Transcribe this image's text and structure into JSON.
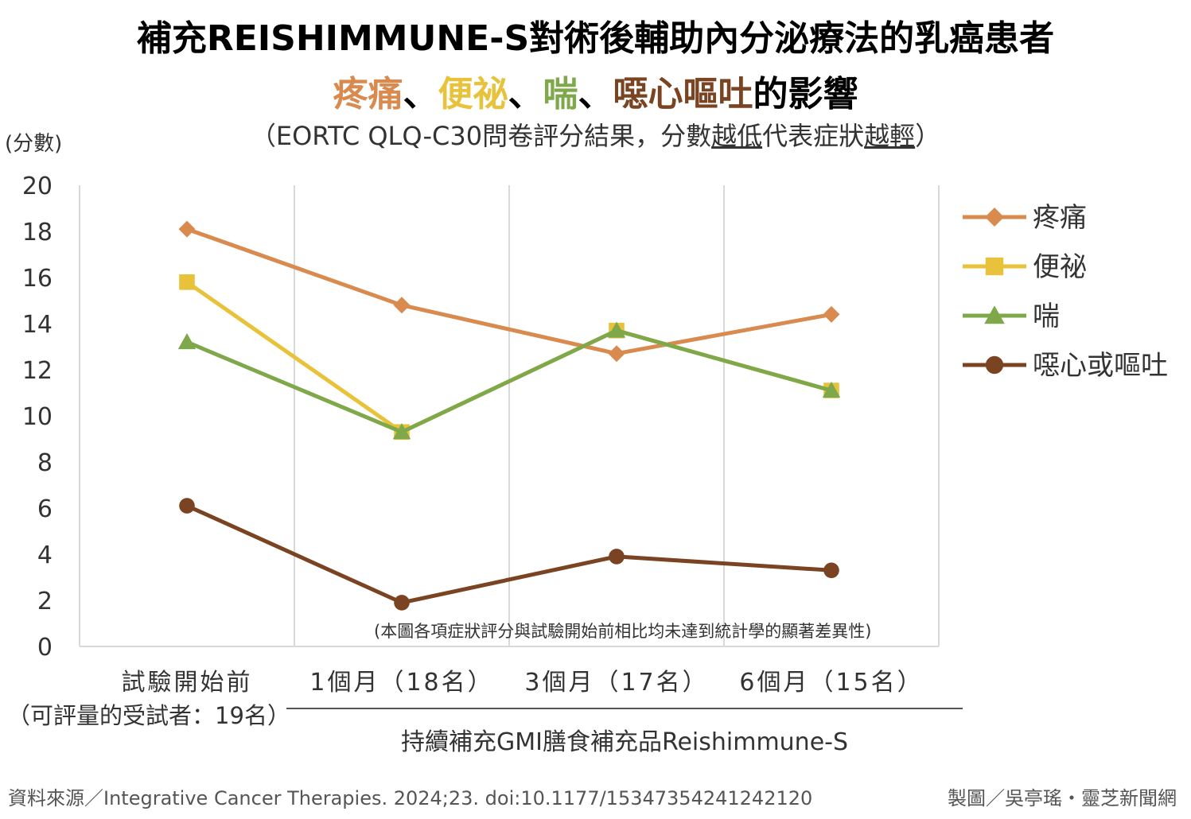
{
  "title": "補充REISHIMMUNE-S對術後輔助內分泌療法的乳癌患者",
  "title2": {
    "pain": "疼痛",
    "sep1": "、",
    "constipation": "便祕",
    "sep2": "、",
    "dyspnea": "喘",
    "sep3": "、",
    "nausea": "噁心嘔吐",
    "suffix": "的影響"
  },
  "subtitle": {
    "pre": "（EORTC QLQ-C30問卷評分結果，分數",
    "u1": "越低",
    "mid": "代表症狀",
    "u2": "越輕",
    "post": "）"
  },
  "y_unit": "(分數)",
  "note": "(本圖各項症狀評分與試驗開始前相比均未達到統計學的顯著差異性)",
  "group_label": "持續補充GMI膳食補充品Reishimmune-S",
  "source": "資料來源／Integrative Cancer Therapies. 2024;23. doi:10.1177/15347354241242120",
  "credit": "製圖／吳亭瑤・靈芝新聞網",
  "chart_data": {
    "type": "line",
    "categories": [
      "試驗開始前",
      "1個月（18名）",
      "3個月（17名）",
      "6個月（15名）"
    ],
    "category_sublabels": [
      "（可評量的受試者：19名）",
      "",
      "",
      ""
    ],
    "ylim": [
      0,
      20
    ],
    "yticks": [
      0,
      2,
      4,
      6,
      8,
      10,
      12,
      14,
      16,
      18,
      20
    ],
    "grid": "vertical",
    "legend_position": "right",
    "series": [
      {
        "name": "疼痛",
        "color": "#D98A4E",
        "marker": "diamond",
        "values": [
          18.1,
          14.8,
          12.7,
          14.4
        ]
      },
      {
        "name": "便祕",
        "color": "#E8C23A",
        "marker": "square",
        "values": [
          15.8,
          9.3,
          13.7,
          11.1
        ]
      },
      {
        "name": "喘",
        "color": "#7FA84B",
        "marker": "triangle",
        "values": [
          13.2,
          9.3,
          13.7,
          11.1
        ]
      },
      {
        "name": "噁心或嘔吐",
        "color": "#7A4422",
        "marker": "circle",
        "values": [
          6.1,
          1.9,
          3.9,
          3.3
        ]
      }
    ]
  }
}
